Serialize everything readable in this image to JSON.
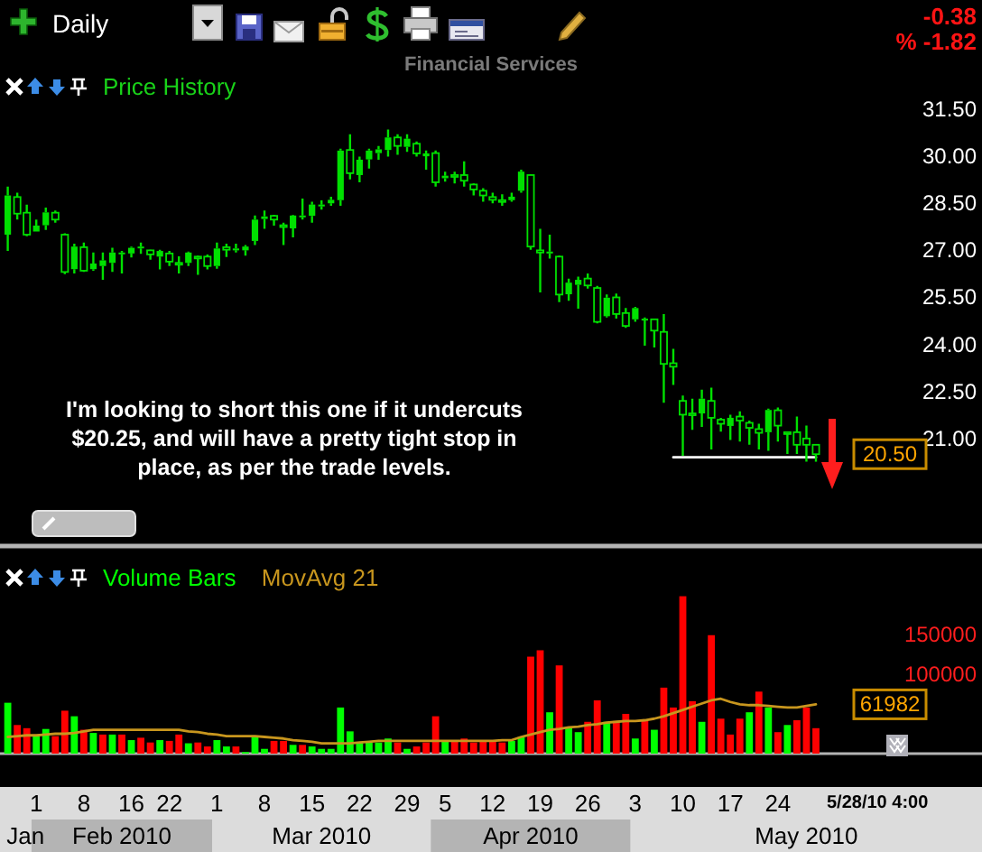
{
  "chart_data": [
    {
      "type": "candlestick",
      "title": "Price History",
      "subtitle": "Financial Services",
      "color": "#00e000",
      "categories": [
        null,
        null,
        null,
        null,
        null,
        null,
        null,
        null,
        null,
        null,
        null,
        null,
        null,
        null,
        null,
        null,
        null,
        null,
        null,
        null,
        null,
        null,
        null,
        null,
        null,
        null,
        null,
        null,
        null,
        null,
        null,
        null,
        null,
        null,
        null,
        null,
        null,
        null,
        null,
        null,
        null,
        null,
        null,
        null,
        null,
        null,
        null,
        null,
        null,
        null,
        null,
        null,
        null,
        null,
        null,
        null,
        null,
        null,
        null,
        null,
        null,
        null,
        null,
        null,
        null,
        null,
        null,
        null,
        null,
        null,
        null,
        null,
        null,
        null,
        null,
        null,
        null,
        null,
        null,
        null,
        null,
        null,
        null,
        null,
        null,
        null
      ],
      "ohlc": [
        [
          27.5,
          29.03,
          26.98,
          28.75
        ],
        [
          28.7,
          28.84,
          27.98,
          28.17
        ],
        [
          28.2,
          28.46,
          27.45,
          27.5
        ],
        [
          27.6,
          27.98,
          27.6,
          27.79
        ],
        [
          27.8,
          28.36,
          27.65,
          28.21
        ],
        [
          28.2,
          28.27,
          27.88,
          27.98
        ],
        [
          27.5,
          27.54,
          26.24,
          26.31
        ],
        [
          26.4,
          27.21,
          26.26,
          27.12
        ],
        [
          27.1,
          27.25,
          26.31,
          26.35
        ],
        [
          26.4,
          26.93,
          26.35,
          26.58
        ],
        [
          26.5,
          26.93,
          26.06,
          26.68
        ],
        [
          26.6,
          27.08,
          26.31,
          26.93
        ],
        [
          26.9,
          26.98,
          26.26,
          26.93
        ],
        [
          26.9,
          27.12,
          26.77,
          27.08
        ],
        [
          27.1,
          27.25,
          26.89,
          27.12
        ],
        [
          27.0,
          27.02,
          26.7,
          26.87
        ],
        [
          26.8,
          27.02,
          26.39,
          26.98
        ],
        [
          26.9,
          26.98,
          26.5,
          26.64
        ],
        [
          26.6,
          26.81,
          26.26,
          26.58
        ],
        [
          26.6,
          26.96,
          26.5,
          26.93
        ],
        [
          26.8,
          26.83,
          26.22,
          26.77
        ],
        [
          26.8,
          26.87,
          26.39,
          26.5
        ],
        [
          26.5,
          27.25,
          26.41,
          27.06
        ],
        [
          27.1,
          27.21,
          26.79,
          27.02
        ],
        [
          27.0,
          27.21,
          26.93,
          27.06
        ],
        [
          27.0,
          27.17,
          26.83,
          27.12
        ],
        [
          27.3,
          28.11,
          27.17,
          27.98
        ],
        [
          28.0,
          28.27,
          27.69,
          28.08
        ],
        [
          28.1,
          28.13,
          27.79,
          27.98
        ],
        [
          27.8,
          27.88,
          27.17,
          27.79
        ],
        [
          27.7,
          28.13,
          27.41,
          28.11
        ],
        [
          28.1,
          28.65,
          27.98,
          28.11
        ],
        [
          28.1,
          28.55,
          27.88,
          28.46
        ],
        [
          28.4,
          28.59,
          28.3,
          28.46
        ],
        [
          28.5,
          28.71,
          28.42,
          28.61
        ],
        [
          28.6,
          30.24,
          28.42,
          30.18
        ],
        [
          30.2,
          30.7,
          29.26,
          29.46
        ],
        [
          29.4,
          29.99,
          29.17,
          29.89
        ],
        [
          29.9,
          30.24,
          29.61,
          30.18
        ],
        [
          30.1,
          30.33,
          29.89,
          30.22
        ],
        [
          30.2,
          30.85,
          29.99,
          30.6
        ],
        [
          30.6,
          30.7,
          30.05,
          30.33
        ],
        [
          30.3,
          30.7,
          30.14,
          30.56
        ],
        [
          30.4,
          30.47,
          29.99,
          30.09
        ],
        [
          30.0,
          30.18,
          29.57,
          30.09
        ],
        [
          30.1,
          30.18,
          29.03,
          29.17
        ],
        [
          29.3,
          29.51,
          29.19,
          29.38
        ],
        [
          29.4,
          29.51,
          29.13,
          29.38
        ],
        [
          29.4,
          29.84,
          29.03,
          29.22
        ],
        [
          29.1,
          29.13,
          28.75,
          28.94
        ],
        [
          28.9,
          28.98,
          28.55,
          28.75
        ],
        [
          28.7,
          28.84,
          28.5,
          28.61
        ],
        [
          28.6,
          28.79,
          28.42,
          28.55
        ],
        [
          28.6,
          28.84,
          28.55,
          28.71
        ],
        [
          28.9,
          29.57,
          28.84,
          29.51
        ],
        [
          29.4,
          29.42,
          27.02,
          27.12
        ],
        [
          27.0,
          27.69,
          25.66,
          26.93
        ],
        [
          26.9,
          27.5,
          26.74,
          26.96
        ],
        [
          26.8,
          26.83,
          25.35,
          25.59
        ],
        [
          25.6,
          26.1,
          25.39,
          25.97
        ],
        [
          25.9,
          26.16,
          25.14,
          26.06
        ],
        [
          26.1,
          26.26,
          25.78,
          25.88
        ],
        [
          25.8,
          25.87,
          24.67,
          24.72
        ],
        [
          24.9,
          25.59,
          24.86,
          25.49
        ],
        [
          25.5,
          25.62,
          24.82,
          24.97
        ],
        [
          25.0,
          25.16,
          24.53,
          24.59
        ],
        [
          24.8,
          25.2,
          24.72,
          25.16
        ],
        [
          24.8,
          24.86,
          23.96,
          24.82
        ],
        [
          24.8,
          24.82,
          23.9,
          24.44
        ],
        [
          24.4,
          24.97,
          22.14,
          23.38
        ],
        [
          23.4,
          23.86,
          22.71,
          23.29
        ],
        [
          22.2,
          22.37,
          20.45,
          21.76
        ],
        [
          21.8,
          22.27,
          21.28,
          21.76
        ],
        [
          21.8,
          22.56,
          21.37,
          22.27
        ],
        [
          22.2,
          22.62,
          20.65,
          21.66
        ],
        [
          21.6,
          21.66,
          21.22,
          21.47
        ],
        [
          21.4,
          21.76,
          20.95,
          21.66
        ],
        [
          21.7,
          21.87,
          20.9,
          21.57
        ],
        [
          21.5,
          21.57,
          20.8,
          21.34
        ],
        [
          21.3,
          21.47,
          20.65,
          21.18
        ],
        [
          21.2,
          21.95,
          20.61,
          21.91
        ],
        [
          21.9,
          21.99,
          20.9,
          21.41
        ],
        [
          21.2,
          21.22,
          20.51,
          21.18
        ],
        [
          21.2,
          21.7,
          20.51,
          20.8
        ],
        [
          21.0,
          21.41,
          20.26,
          20.8
        ],
        [
          20.8,
          20.8,
          20.26,
          20.5
        ]
      ],
      "series": [
        {
          "type": "line",
          "color": "#ffffff",
          "values": [
            null,
            null,
            null,
            null,
            null,
            null,
            null,
            null,
            null,
            null,
            null,
            null,
            null,
            null,
            null,
            null,
            null,
            null,
            null,
            null,
            null,
            null,
            null,
            null,
            null,
            null,
            null,
            null,
            null,
            null,
            null,
            null,
            null,
            null,
            null,
            null,
            null,
            null,
            null,
            null,
            null,
            null,
            null,
            null,
            null,
            null,
            null,
            null,
            null,
            null,
            null,
            null,
            null,
            null,
            null,
            null,
            null,
            null,
            null,
            null,
            null,
            null,
            null,
            null,
            null,
            null,
            null,
            null,
            null,
            null,
            20.4,
            20.4,
            20.4,
            20.4,
            20.4,
            20.4,
            20.4,
            20.4,
            20.4,
            20.4,
            20.4,
            20.4,
            20.4,
            20.4,
            20.4,
            20.4
          ]
        }
      ],
      "ylim": [
        17.6,
        31.5
      ],
      "yticks": [
        {
          "value": 31.5,
          "label": "31.50"
        },
        {
          "value": 30,
          "label": "30.00"
        },
        {
          "value": 28.5,
          "label": "28.50"
        },
        {
          "value": 27,
          "label": "27.00"
        },
        {
          "value": 25.5,
          "label": "25.50"
        },
        {
          "value": 24,
          "label": "24.00"
        },
        {
          "value": 22.5,
          "label": "22.50"
        },
        {
          "value": 21,
          "label": "21.00"
        }
      ],
      "tick_labels": "y",
      "annotations": [
        "Daily",
        "-0.38",
        "% -1.82",
        "I'm looking to short this one if it undercuts $20.25, and will have a pretty tight stop in place, as per the trade levels.",
        "20.50"
      ]
    },
    {
      "type": "bar",
      "categories": [
        null,
        null,
        null,
        "1",
        null,
        null,
        null,
        null,
        "8",
        null,
        null,
        null,
        null,
        "16",
        null,
        null,
        null,
        "22",
        null,
        null,
        null,
        null,
        "1",
        null,
        null,
        null,
        null,
        "8",
        null,
        null,
        null,
        null,
        "15",
        null,
        null,
        null,
        null,
        "22",
        null,
        null,
        null,
        null,
        "29",
        null,
        null,
        null,
        "5",
        null,
        null,
        null,
        null,
        "12",
        null,
        null,
        null,
        null,
        "19",
        null,
        null,
        null,
        null,
        "26",
        null,
        null,
        null,
        null,
        "3",
        null,
        null,
        null,
        null,
        "10",
        null,
        null,
        null,
        null,
        "17",
        null,
        null,
        null,
        null,
        "24",
        null,
        null,
        null,
        null
      ],
      "series": [
        {
          "name": "Volume Bars",
          "color": "#00ff00",
          "colors": [
            "#00ff00",
            "#ff0000",
            "#ff0000",
            "#00ff00",
            "#00ff00",
            "#ff0000",
            "#ff0000",
            "#00ff00",
            "#ff0000",
            "#00ff00",
            "#ff0000",
            "#00ff00",
            "#ff0000",
            "#00ff00",
            "#ff0000",
            "#ff0000",
            "#00ff00",
            "#ff0000",
            "#ff0000",
            "#00ff00",
            "#ff0000",
            "#ff0000",
            "#00ff00",
            "#00ff00",
            "#ff0000",
            "#00ff00",
            "#00ff00",
            "#00ff00",
            "#ff0000",
            "#ff0000",
            "#00ff00",
            "#ff0000",
            "#00ff00",
            "#00ff00",
            "#00ff00",
            "#00ff00",
            "#00ff00",
            "#00ff00",
            "#00ff00",
            "#00ff00",
            "#00ff00",
            "#ff0000",
            "#00ff00",
            "#ff0000",
            "#ff0000",
            "#ff0000",
            "#00ff00",
            "#ff0000",
            "#ff0000",
            "#ff0000",
            "#ff0000",
            "#ff0000",
            "#ff0000",
            "#00ff00",
            "#00ff00",
            "#ff0000",
            "#ff0000",
            "#00ff00",
            "#ff0000",
            "#00ff00",
            "#00ff00",
            "#ff0000",
            "#ff0000",
            "#00ff00",
            "#ff0000",
            "#ff0000",
            "#00ff00",
            "#ff0000",
            "#00ff00",
            "#ff0000",
            "#ff0000",
            "#ff0000",
            "#ff0000",
            "#00ff00",
            "#ff0000",
            "#ff0000",
            "#ff0000",
            "#ff0000",
            "#00ff00",
            "#ff0000",
            "#00ff00",
            "#ff0000",
            "#00ff00",
            "#ff0000",
            "#ff0000",
            "#ff0000"
          ],
          "values": [
            64000,
            36000,
            32000,
            22000,
            31000,
            22000,
            54000,
            47000,
            30000,
            26000,
            24000,
            24000,
            24000,
            17000,
            20000,
            14000,
            17000,
            16000,
            24000,
            13000,
            14000,
            9000,
            17000,
            9000,
            9000,
            2000,
            21000,
            6000,
            16000,
            16000,
            11000,
            11000,
            9000,
            6000,
            6000,
            58000,
            28000,
            14000,
            14000,
            14000,
            19000,
            14000,
            6000,
            9000,
            14000,
            47000,
            16000,
            16000,
            19000,
            14000,
            16000,
            16000,
            14000,
            16000,
            21000,
            122000,
            130000,
            52000,
            111000,
            32000,
            27000,
            40000,
            67000,
            40000,
            41000,
            50000,
            19000,
            41000,
            30000,
            83000,
            58000,
            198000,
            66000,
            40000,
            149000,
            44000,
            24000,
            44000,
            52000,
            78000,
            58000,
            27000,
            36000,
            42000,
            58000,
            32000
          ]
        },
        {
          "name": "MovAvg 21",
          "type": "line",
          "color": "#c8961e",
          "values": [
            21000,
            22000,
            23000,
            23000,
            24000,
            25000,
            25000,
            26000,
            28000,
            30000,
            30000,
            30000,
            30000,
            30000,
            30000,
            30000,
            30000,
            30000,
            30000,
            28000,
            27000,
            25000,
            24000,
            22000,
            22000,
            22000,
            22000,
            21000,
            20000,
            19000,
            17000,
            16000,
            15000,
            13000,
            13000,
            13000,
            13000,
            14000,
            15000,
            16000,
            16000,
            16000,
            16000,
            16000,
            16000,
            16000,
            16000,
            16000,
            16000,
            16000,
            16000,
            16000,
            17000,
            17000,
            21000,
            24000,
            27000,
            30000,
            31000,
            33000,
            34000,
            36000,
            37000,
            39000,
            40000,
            41000,
            41000,
            42000,
            44000,
            47000,
            51000,
            55000,
            59000,
            63000,
            67000,
            69000,
            65000,
            62000,
            61000,
            61000,
            60000,
            59000,
            58000,
            58000,
            60000,
            61982
          ]
        }
      ],
      "ylim": [
        0,
        260000
      ],
      "yticks": [
        100000,
        150000
      ],
      "legend": "top left",
      "annotations": [
        "5/28/10 4:00",
        "61982",
        "Jan",
        "Feb 2010",
        "Mar 2010",
        "Apr 2010",
        "May 2010"
      ]
    }
  ]
}
